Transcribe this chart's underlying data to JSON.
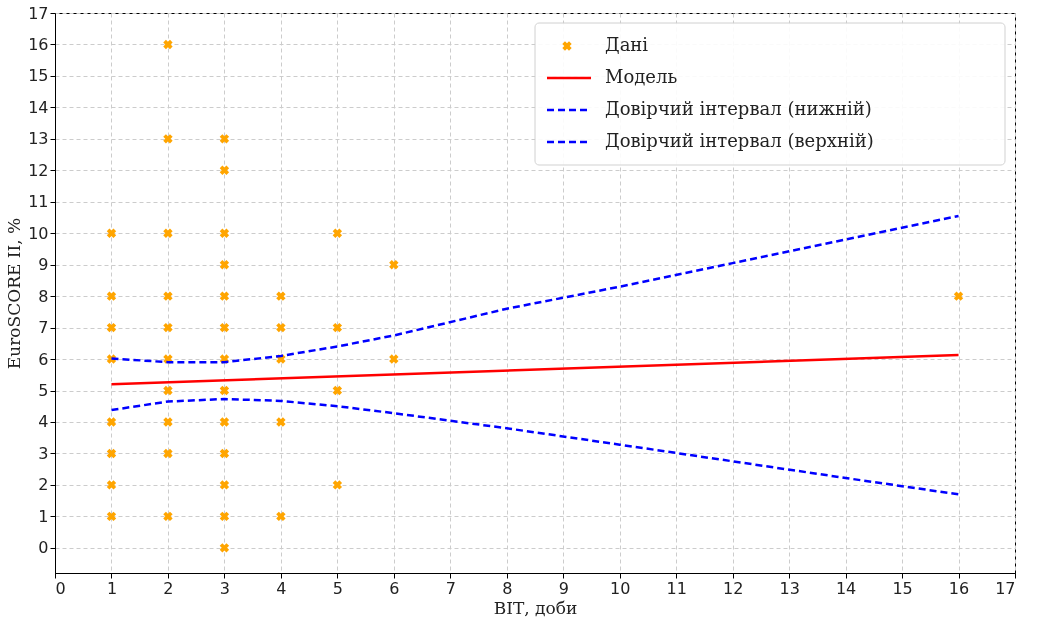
{
  "chart_data": {
    "type": "scatter",
    "xlabel": "ВІТ, доби",
    "ylabel": "EuroSCORE II, %",
    "xlim": [
      0,
      17
    ],
    "ylim": [
      -0.8,
      17
    ],
    "xticks": [
      0,
      1,
      2,
      3,
      4,
      5,
      6,
      7,
      8,
      9,
      10,
      11,
      12,
      13,
      14,
      15,
      16,
      17
    ],
    "yticks": [
      0,
      1,
      2,
      3,
      4,
      5,
      6,
      7,
      8,
      9,
      10,
      11,
      12,
      13,
      14,
      15,
      16,
      17
    ],
    "grid": true,
    "legend": "top right",
    "series": [
      {
        "name": "Дані",
        "marker": "cross",
        "color": "#ffa500",
        "x": [
          1,
          1,
          1,
          1,
          1,
          1,
          1,
          1,
          2,
          2,
          2,
          2,
          2,
          2,
          2,
          2,
          2,
          2,
          3,
          3,
          3,
          3,
          3,
          3,
          3,
          3,
          3,
          3,
          3,
          3,
          3,
          4,
          4,
          4,
          4,
          4,
          5,
          5,
          5,
          5,
          6,
          6,
          16
        ],
        "values": [
          10,
          8,
          7,
          6,
          4,
          3,
          2,
          1,
          16,
          13,
          10,
          8,
          7,
          6,
          5,
          4,
          3,
          1,
          13,
          12,
          10,
          9,
          8,
          7,
          6,
          5,
          4,
          3,
          2,
          1,
          0,
          8,
          7,
          6,
          4,
          1,
          10,
          7,
          5,
          2,
          9,
          6,
          8
        ]
      },
      {
        "name": "Модель",
        "type": "line",
        "line_style": "solid",
        "color": "#ff0000",
        "x": [
          1,
          16
        ],
        "values": [
          5.2,
          6.13
        ]
      },
      {
        "name": "Довірчий інтервал (нижній)",
        "type": "line",
        "line_style": "dashed",
        "color": "#0000ff",
        "x": [
          1,
          2,
          3,
          4,
          5,
          6,
          8,
          10,
          12,
          14,
          16
        ],
        "values": [
          4.38,
          4.65,
          4.73,
          4.67,
          4.5,
          4.28,
          3.8,
          3.28,
          2.75,
          2.22,
          1.7
        ]
      },
      {
        "name": "Довірчий інтервал (верхній)",
        "type": "line",
        "line_style": "dashed",
        "color": "#0000ff",
        "x": [
          1,
          2,
          3,
          4,
          5,
          6,
          8,
          10,
          12,
          14,
          16
        ],
        "values": [
          6.02,
          5.9,
          5.9,
          6.1,
          6.4,
          6.75,
          7.6,
          8.3,
          9.05,
          9.8,
          10.55
        ]
      }
    ]
  }
}
